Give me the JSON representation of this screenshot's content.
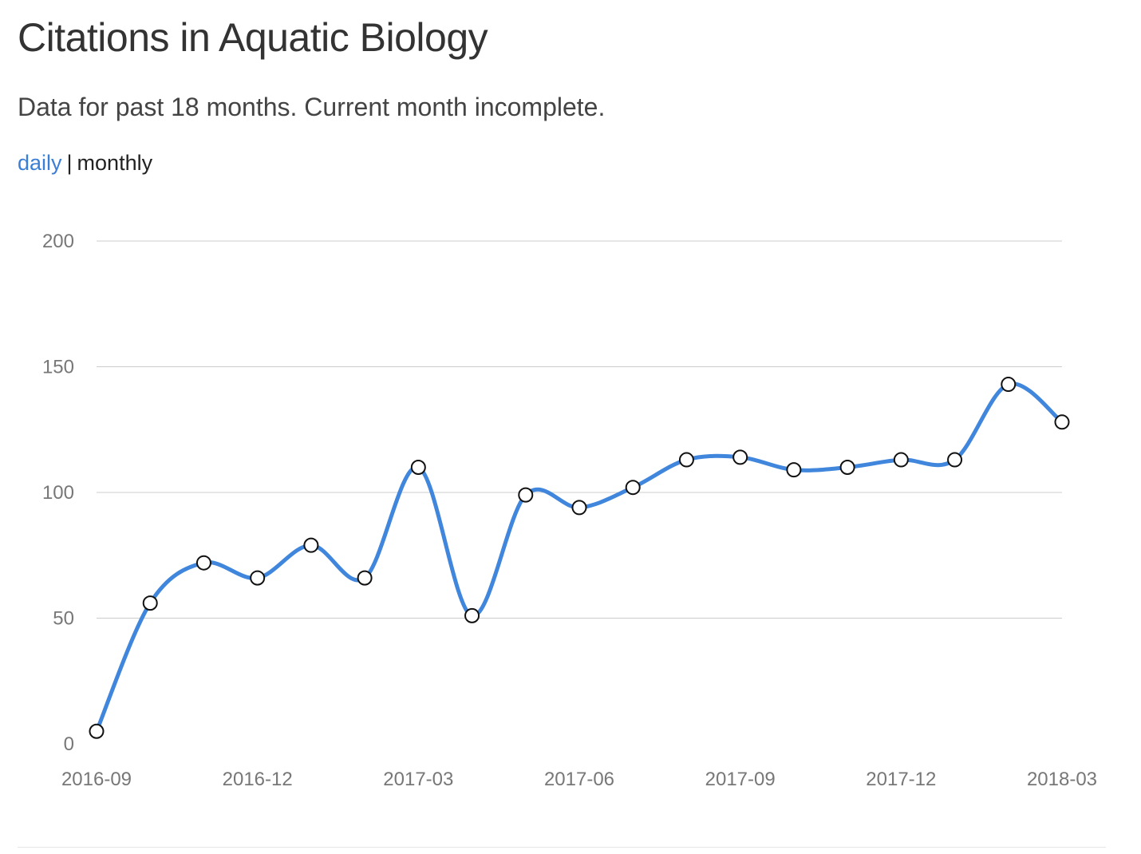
{
  "header": {
    "title": "Citations in Aquatic Biology",
    "subtitle": "Data for past 18 months. Current month incomplete."
  },
  "view_toggle": {
    "daily_label": "daily",
    "separator": "|",
    "monthly_label": "monthly",
    "selected": "monthly"
  },
  "colors": {
    "series": "#3f86dc",
    "link": "#3a7fd5",
    "grid": "#cccccc"
  },
  "chart_data": {
    "type": "line",
    "title": "",
    "xlabel": "",
    "ylabel": "",
    "ylim": [
      0,
      200
    ],
    "yticks": [
      0,
      50,
      100,
      150,
      200
    ],
    "grid": true,
    "x": [
      "2016-09",
      "2016-10",
      "2016-11",
      "2016-12",
      "2017-01",
      "2017-02",
      "2017-03",
      "2017-04",
      "2017-05",
      "2017-06",
      "2017-07",
      "2017-08",
      "2017-09",
      "2017-10",
      "2017-11",
      "2017-12",
      "2018-01",
      "2018-02",
      "2018-03"
    ],
    "xtick_labels": [
      "2016-09",
      "2016-12",
      "2017-03",
      "2017-06",
      "2017-09",
      "2017-12",
      "2018-03"
    ],
    "series": [
      {
        "values": [
          5,
          56,
          72,
          66,
          79,
          66,
          110,
          51,
          99,
          94,
          102,
          113,
          114,
          109,
          110,
          113,
          113,
          143,
          128
        ]
      }
    ]
  }
}
